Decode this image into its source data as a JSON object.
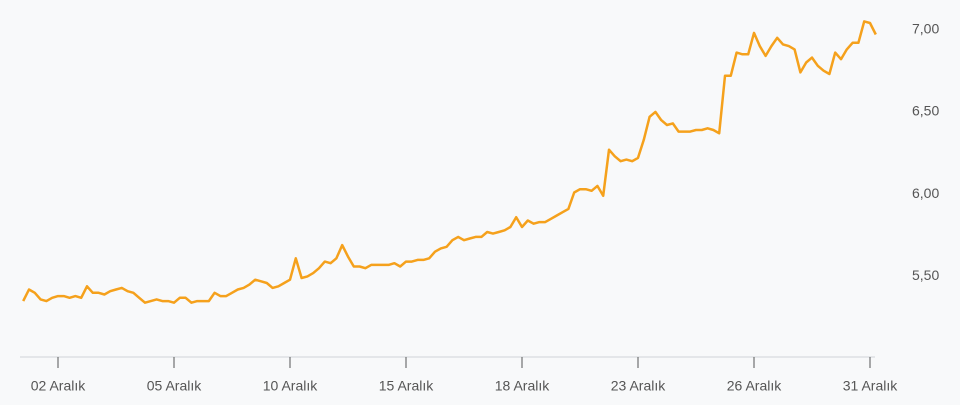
{
  "chart_data": {
    "type": "line",
    "color": "#f5a11c",
    "grid": false,
    "y_axis_side": "right",
    "categories": [
      null,
      null,
      null,
      null,
      null,
      null,
      "02 Aralık",
      null,
      null,
      null,
      null,
      null,
      null,
      null,
      null,
      null,
      null,
      null,
      null,
      null,
      null,
      null,
      null,
      null,
      null,
      null,
      "05 Aralık",
      null,
      null,
      null,
      null,
      null,
      null,
      null,
      null,
      null,
      null,
      null,
      null,
      null,
      null,
      null,
      null,
      null,
      null,
      null,
      "10 Aralık",
      null,
      null,
      null,
      null,
      null,
      null,
      null,
      null,
      null,
      null,
      null,
      null,
      null,
      null,
      null,
      null,
      null,
      null,
      null,
      "15 Aralık",
      null,
      null,
      null,
      null,
      null,
      null,
      null,
      null,
      null,
      null,
      null,
      null,
      null,
      null,
      null,
      null,
      null,
      null,
      null,
      "18 Aralık",
      null,
      null,
      null,
      null,
      null,
      null,
      null,
      null,
      null,
      null,
      null,
      null,
      null,
      null,
      null,
      null,
      null,
      null,
      null,
      "23 Aralık",
      null,
      null,
      null,
      null,
      null,
      null,
      null,
      null,
      null,
      null,
      null,
      null,
      null,
      null,
      null,
      null,
      null,
      null,
      null,
      "26 Aralık",
      null,
      null,
      null,
      null,
      null,
      null,
      null,
      null,
      null,
      null,
      null,
      null,
      null,
      null,
      null,
      null,
      null,
      null,
      null,
      "31 Aralık",
      null
    ],
    "values": [
      5.35,
      5.42,
      5.4,
      5.36,
      5.35,
      5.37,
      5.38,
      5.38,
      5.37,
      5.38,
      5.37,
      5.44,
      5.4,
      5.4,
      5.39,
      5.41,
      5.42,
      5.43,
      5.41,
      5.4,
      5.37,
      5.34,
      5.35,
      5.36,
      5.35,
      5.35,
      5.34,
      5.37,
      5.37,
      5.34,
      5.35,
      5.35,
      5.35,
      5.4,
      5.38,
      5.38,
      5.4,
      5.42,
      5.43,
      5.45,
      5.48,
      5.47,
      5.46,
      5.43,
      5.44,
      5.46,
      5.48,
      5.61,
      5.49,
      5.5,
      5.52,
      5.55,
      5.59,
      5.58,
      5.61,
      5.69,
      5.62,
      5.56,
      5.56,
      5.55,
      5.57,
      5.57,
      5.57,
      5.57,
      5.58,
      5.56,
      5.59,
      5.59,
      5.6,
      5.6,
      5.61,
      5.65,
      5.67,
      5.68,
      5.72,
      5.74,
      5.72,
      5.73,
      5.74,
      5.74,
      5.77,
      5.76,
      5.77,
      5.78,
      5.8,
      5.86,
      5.8,
      5.84,
      5.82,
      5.83,
      5.83,
      5.85,
      5.87,
      5.89,
      5.91,
      6.01,
      6.03,
      6.03,
      6.02,
      6.05,
      5.99,
      6.27,
      6.23,
      6.2,
      6.21,
      6.2,
      6.22,
      6.33,
      6.47,
      6.5,
      6.45,
      6.42,
      6.43,
      6.38,
      6.38,
      6.38,
      6.39,
      6.39,
      6.4,
      6.39,
      6.37,
      6.72,
      6.72,
      6.86,
      6.85,
      6.85,
      6.98,
      6.9,
      6.84,
      6.9,
      6.95,
      6.91,
      6.9,
      6.88,
      6.74,
      6.8,
      6.83,
      6.78,
      6.75,
      6.73,
      6.86,
      6.82,
      6.88,
      6.92,
      6.92,
      7.05,
      7.04,
      6.97
    ],
    "ylim": [
      5.01,
      7.18
    ],
    "yticks": [
      {
        "value": 5.5,
        "label": "5,50"
      },
      {
        "value": 6,
        "label": "6,00"
      },
      {
        "value": 6.5,
        "label": "6,50"
      },
      {
        "value": 7,
        "label": "7,00"
      }
    ]
  }
}
